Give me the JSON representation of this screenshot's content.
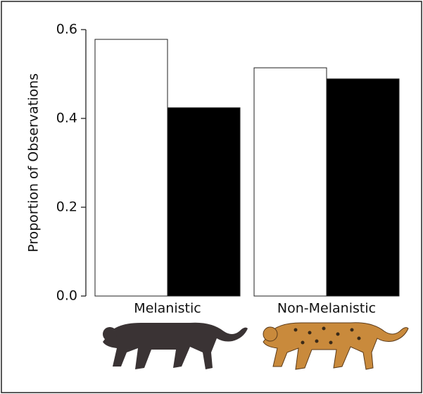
{
  "chart_data": {
    "type": "bar",
    "y_label": "Proportion of Observations",
    "categories": [
      "Melanistic",
      "Non-Melanistic"
    ],
    "series": [
      {
        "color": "#ffffff",
        "values": [
          0.578,
          0.514
        ]
      },
      {
        "color": "#000000",
        "values": [
          0.424,
          0.489
        ]
      }
    ],
    "ylim": [
      0,
      0.6
    ],
    "yticks": [
      {
        "value": 0,
        "label": "0.0"
      },
      0.2,
      0.4,
      0.6
    ]
  }
}
